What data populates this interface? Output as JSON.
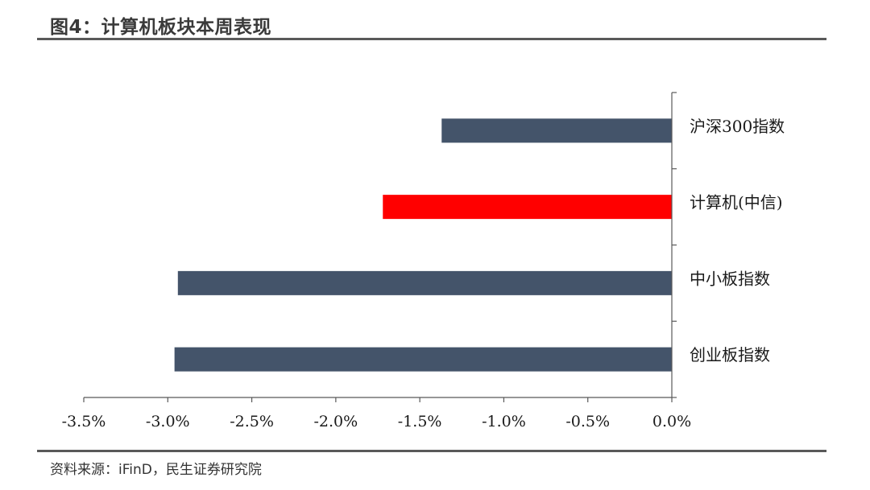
{
  "figure": {
    "title": "图4：计算机板块本周表现",
    "source": "资料来源：iFinD，民生证券研究院"
  },
  "colors": {
    "default_bar": "#44546a",
    "highlight_bar": "#ff0000",
    "axis": "#595959",
    "rule": "#595959"
  },
  "chart_data": {
    "type": "bar",
    "orientation": "horizontal",
    "categories": [
      "沪深300指数",
      "计算机(中信)",
      "中小板指数",
      "创业板指数"
    ],
    "values": [
      -1.37,
      -1.72,
      -2.94,
      -2.96
    ],
    "highlight": "计算机(中信)",
    "xlim": [
      -3.5,
      0
    ],
    "xticks": [
      -3.5,
      -3.0,
      -2.5,
      -2.0,
      -1.5,
      -1.0,
      -0.5,
      0.0
    ],
    "xtick_labels": [
      "-3.5%",
      "-3.0%",
      "-2.5%",
      "-2.0%",
      "-1.5%",
      "-1.0%",
      "-0.5%",
      "0.0%"
    ],
    "xlabel": "",
    "ylabel": "",
    "grid": false,
    "legend": "none"
  }
}
